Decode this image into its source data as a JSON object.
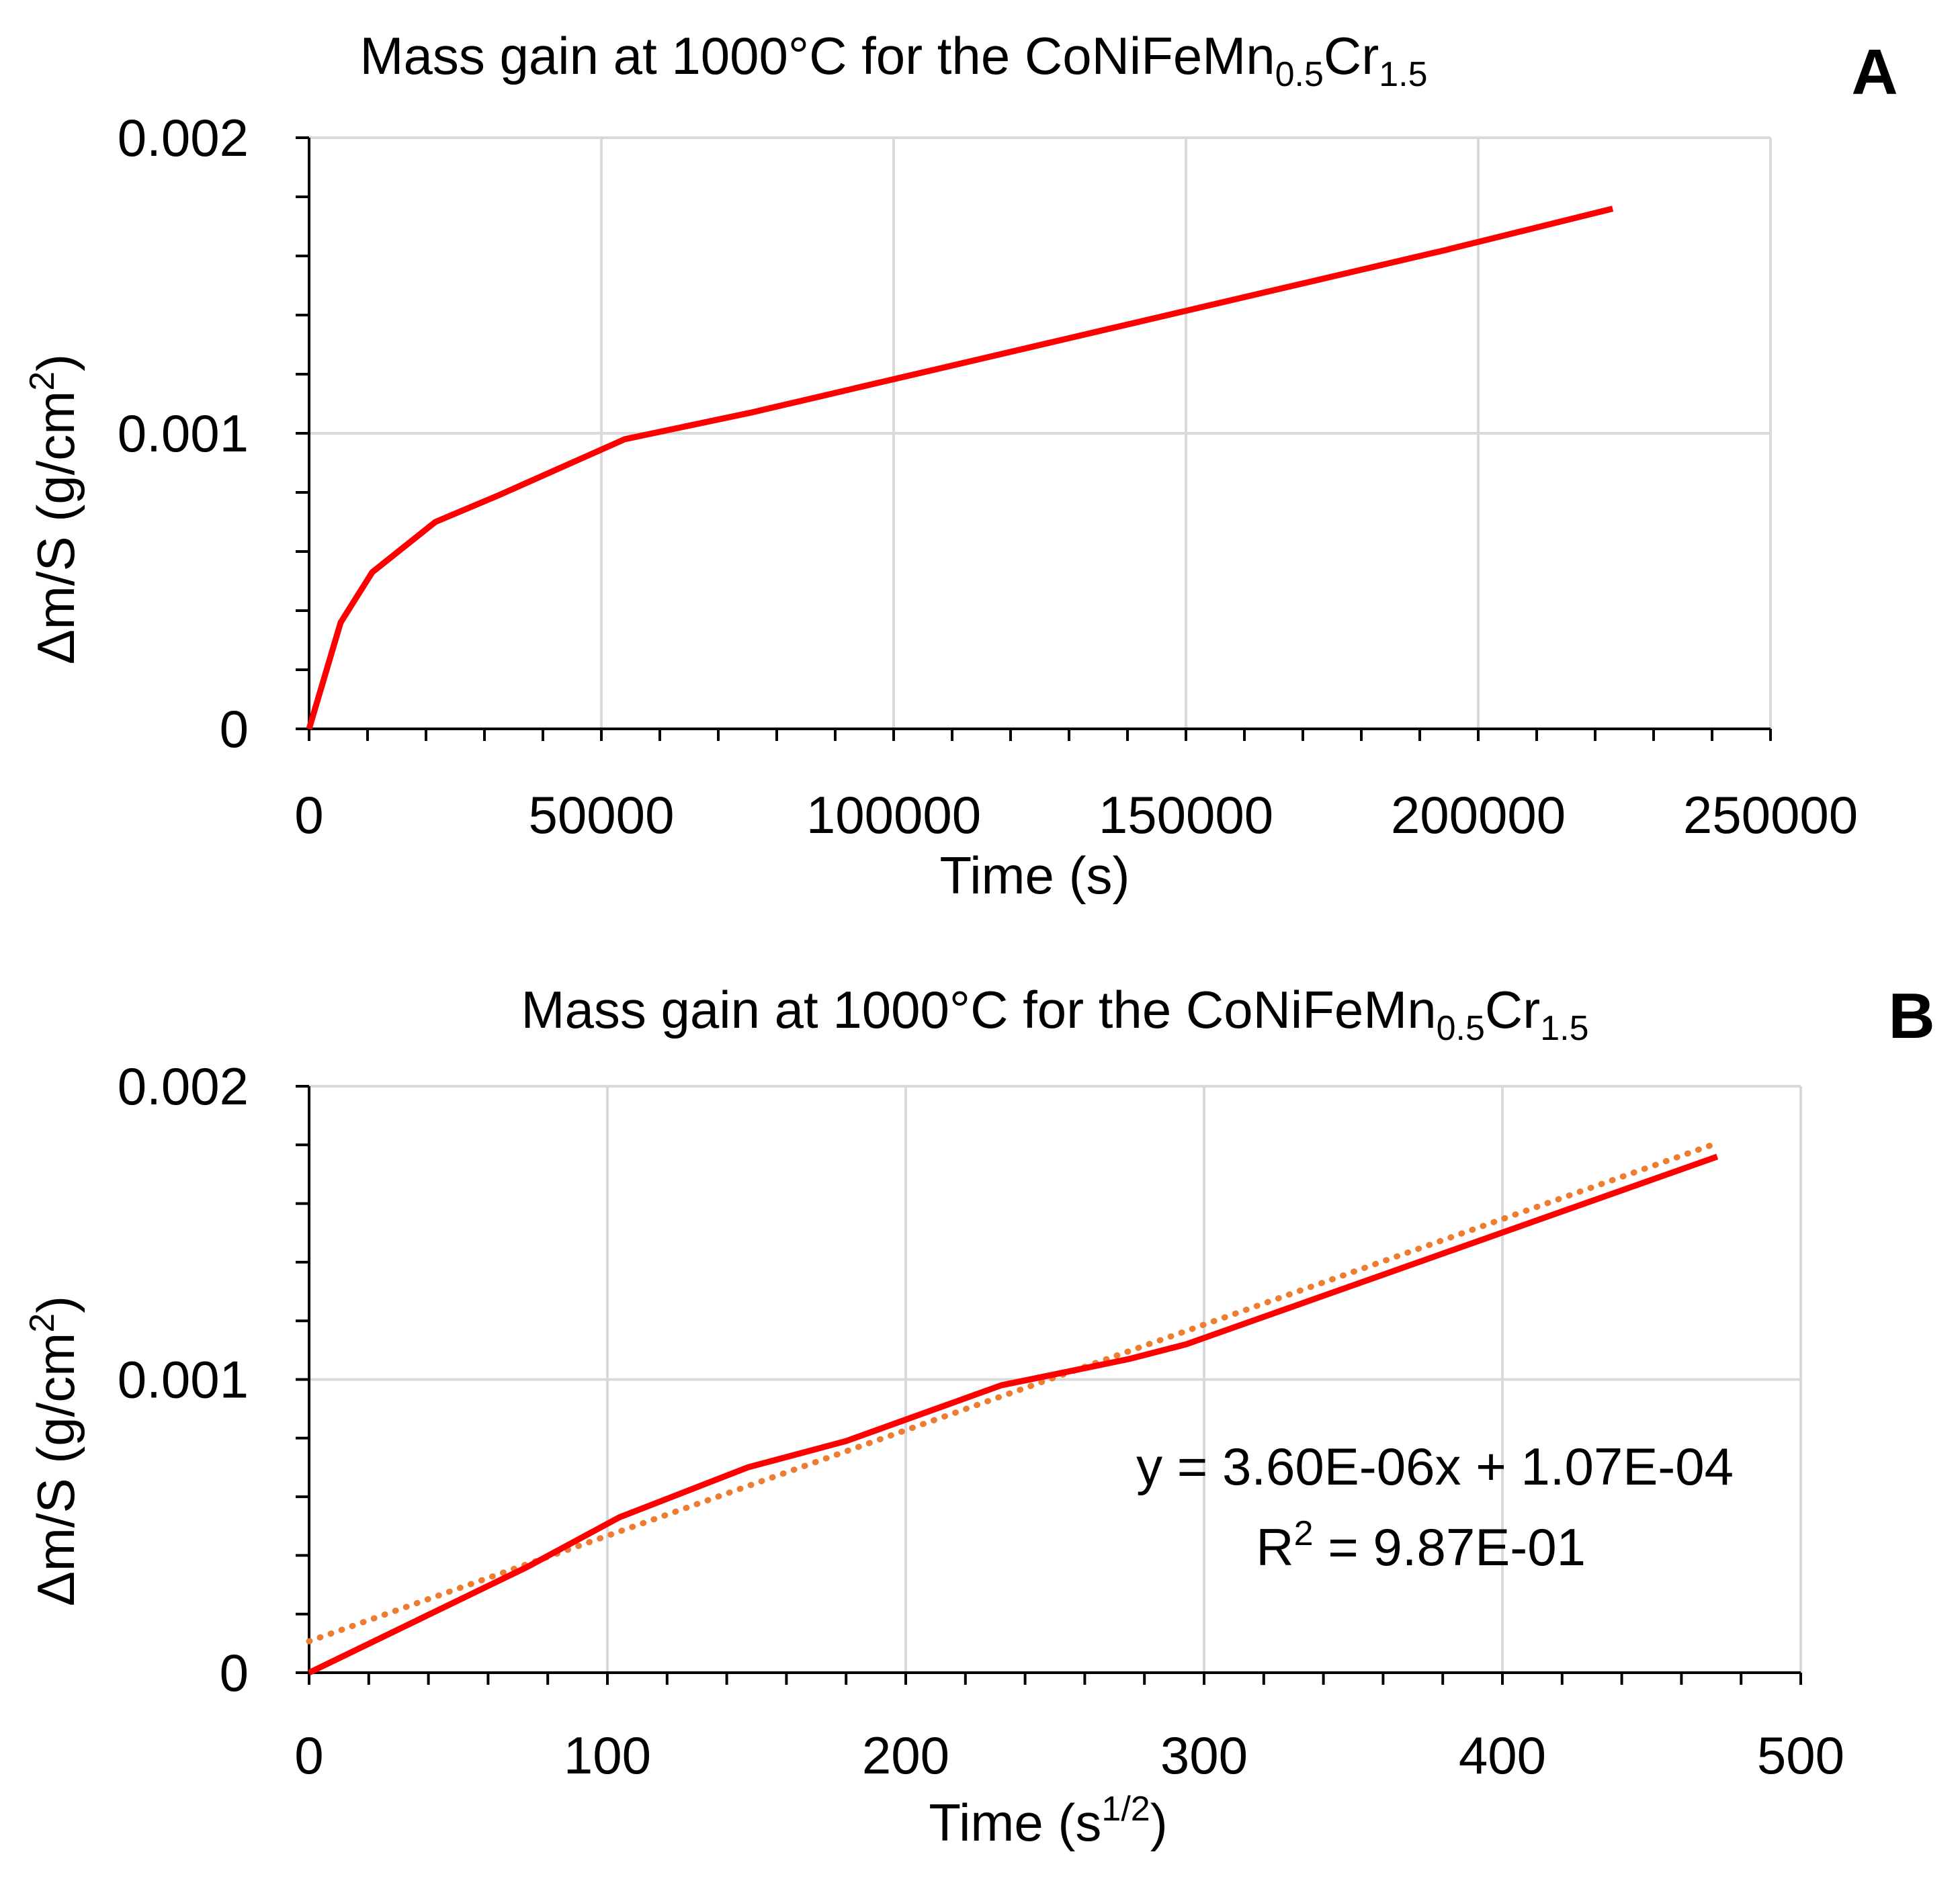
{
  "colors": {
    "series": "#ff0000",
    "trendline": "#ed7d31",
    "grid": "#d9d9d9",
    "axis": "#000000"
  },
  "chart_data": [
    {
      "type": "line",
      "panel_letter": "A",
      "title": {
        "main": "Mass gain at 1000°C for the CoNiFeMn",
        "sub1": "0.5",
        "mid": "Cr",
        "sub2": "1.5"
      },
      "xlabel": "Time (s)",
      "ylabel": {
        "main": "Δm/S  (g/cm",
        "sup": "2",
        "close": ")"
      },
      "xlim": [
        0,
        250000
      ],
      "ylim": [
        0,
        0.002
      ],
      "x_ticks": [
        "0",
        "50000",
        "100000",
        "150000",
        "200000",
        "250000"
      ],
      "y_ticks": [
        "0",
        "0.001",
        "0.002"
      ],
      "grid": true,
      "series": [
        {
          "x": [
            0,
            5400,
            10800,
            21600,
            32400,
            54000,
            75600,
            86400,
            108000,
            129600,
            151200,
            172800,
            194400,
            223000
          ],
          "y": [
            0,
            0.00036,
            0.00053,
            0.0007,
            0.00079,
            0.00098,
            0.00107,
            0.00112,
            0.00122,
            0.00132,
            0.00142,
            0.00152,
            0.00162,
            0.00176
          ]
        }
      ]
    },
    {
      "type": "line",
      "panel_letter": "B",
      "title": {
        "main": "Mass gain at 1000°C for the CoNiFeMn",
        "sub1": "0.5",
        "mid": "Cr",
        "sub2": "1.5"
      },
      "xlabel": {
        "main": "Time (s",
        "sup": "1/2",
        "close": ")"
      },
      "ylabel": {
        "main": "Δm/S  (g/cm",
        "sup": "2",
        "close": ")"
      },
      "xlim": [
        0,
        500
      ],
      "ylim": [
        0,
        0.002
      ],
      "x_ticks": [
        "0",
        "100",
        "200",
        "300",
        "400",
        "500"
      ],
      "y_ticks": [
        "0",
        "0.001",
        "0.002"
      ],
      "grid": true,
      "series": [
        {
          "x": [
            0,
            73,
            104,
            147,
            180,
            232,
            275,
            294,
            472
          ],
          "y": [
            0,
            0.00036,
            0.00053,
            0.0007,
            0.00079,
            0.00098,
            0.00107,
            0.00112,
            0.00176
          ]
        }
      ],
      "trendline": {
        "slope": 3.6e-06,
        "intercept": 0.000107,
        "x_range": [
          0,
          472
        ],
        "style": "dotted",
        "equation": "y = 3.60E-06x + 1.07E-04",
        "r2": {
          "main": "R",
          "sup": "2",
          "rest": " = 9.87E-01"
        }
      }
    }
  ]
}
